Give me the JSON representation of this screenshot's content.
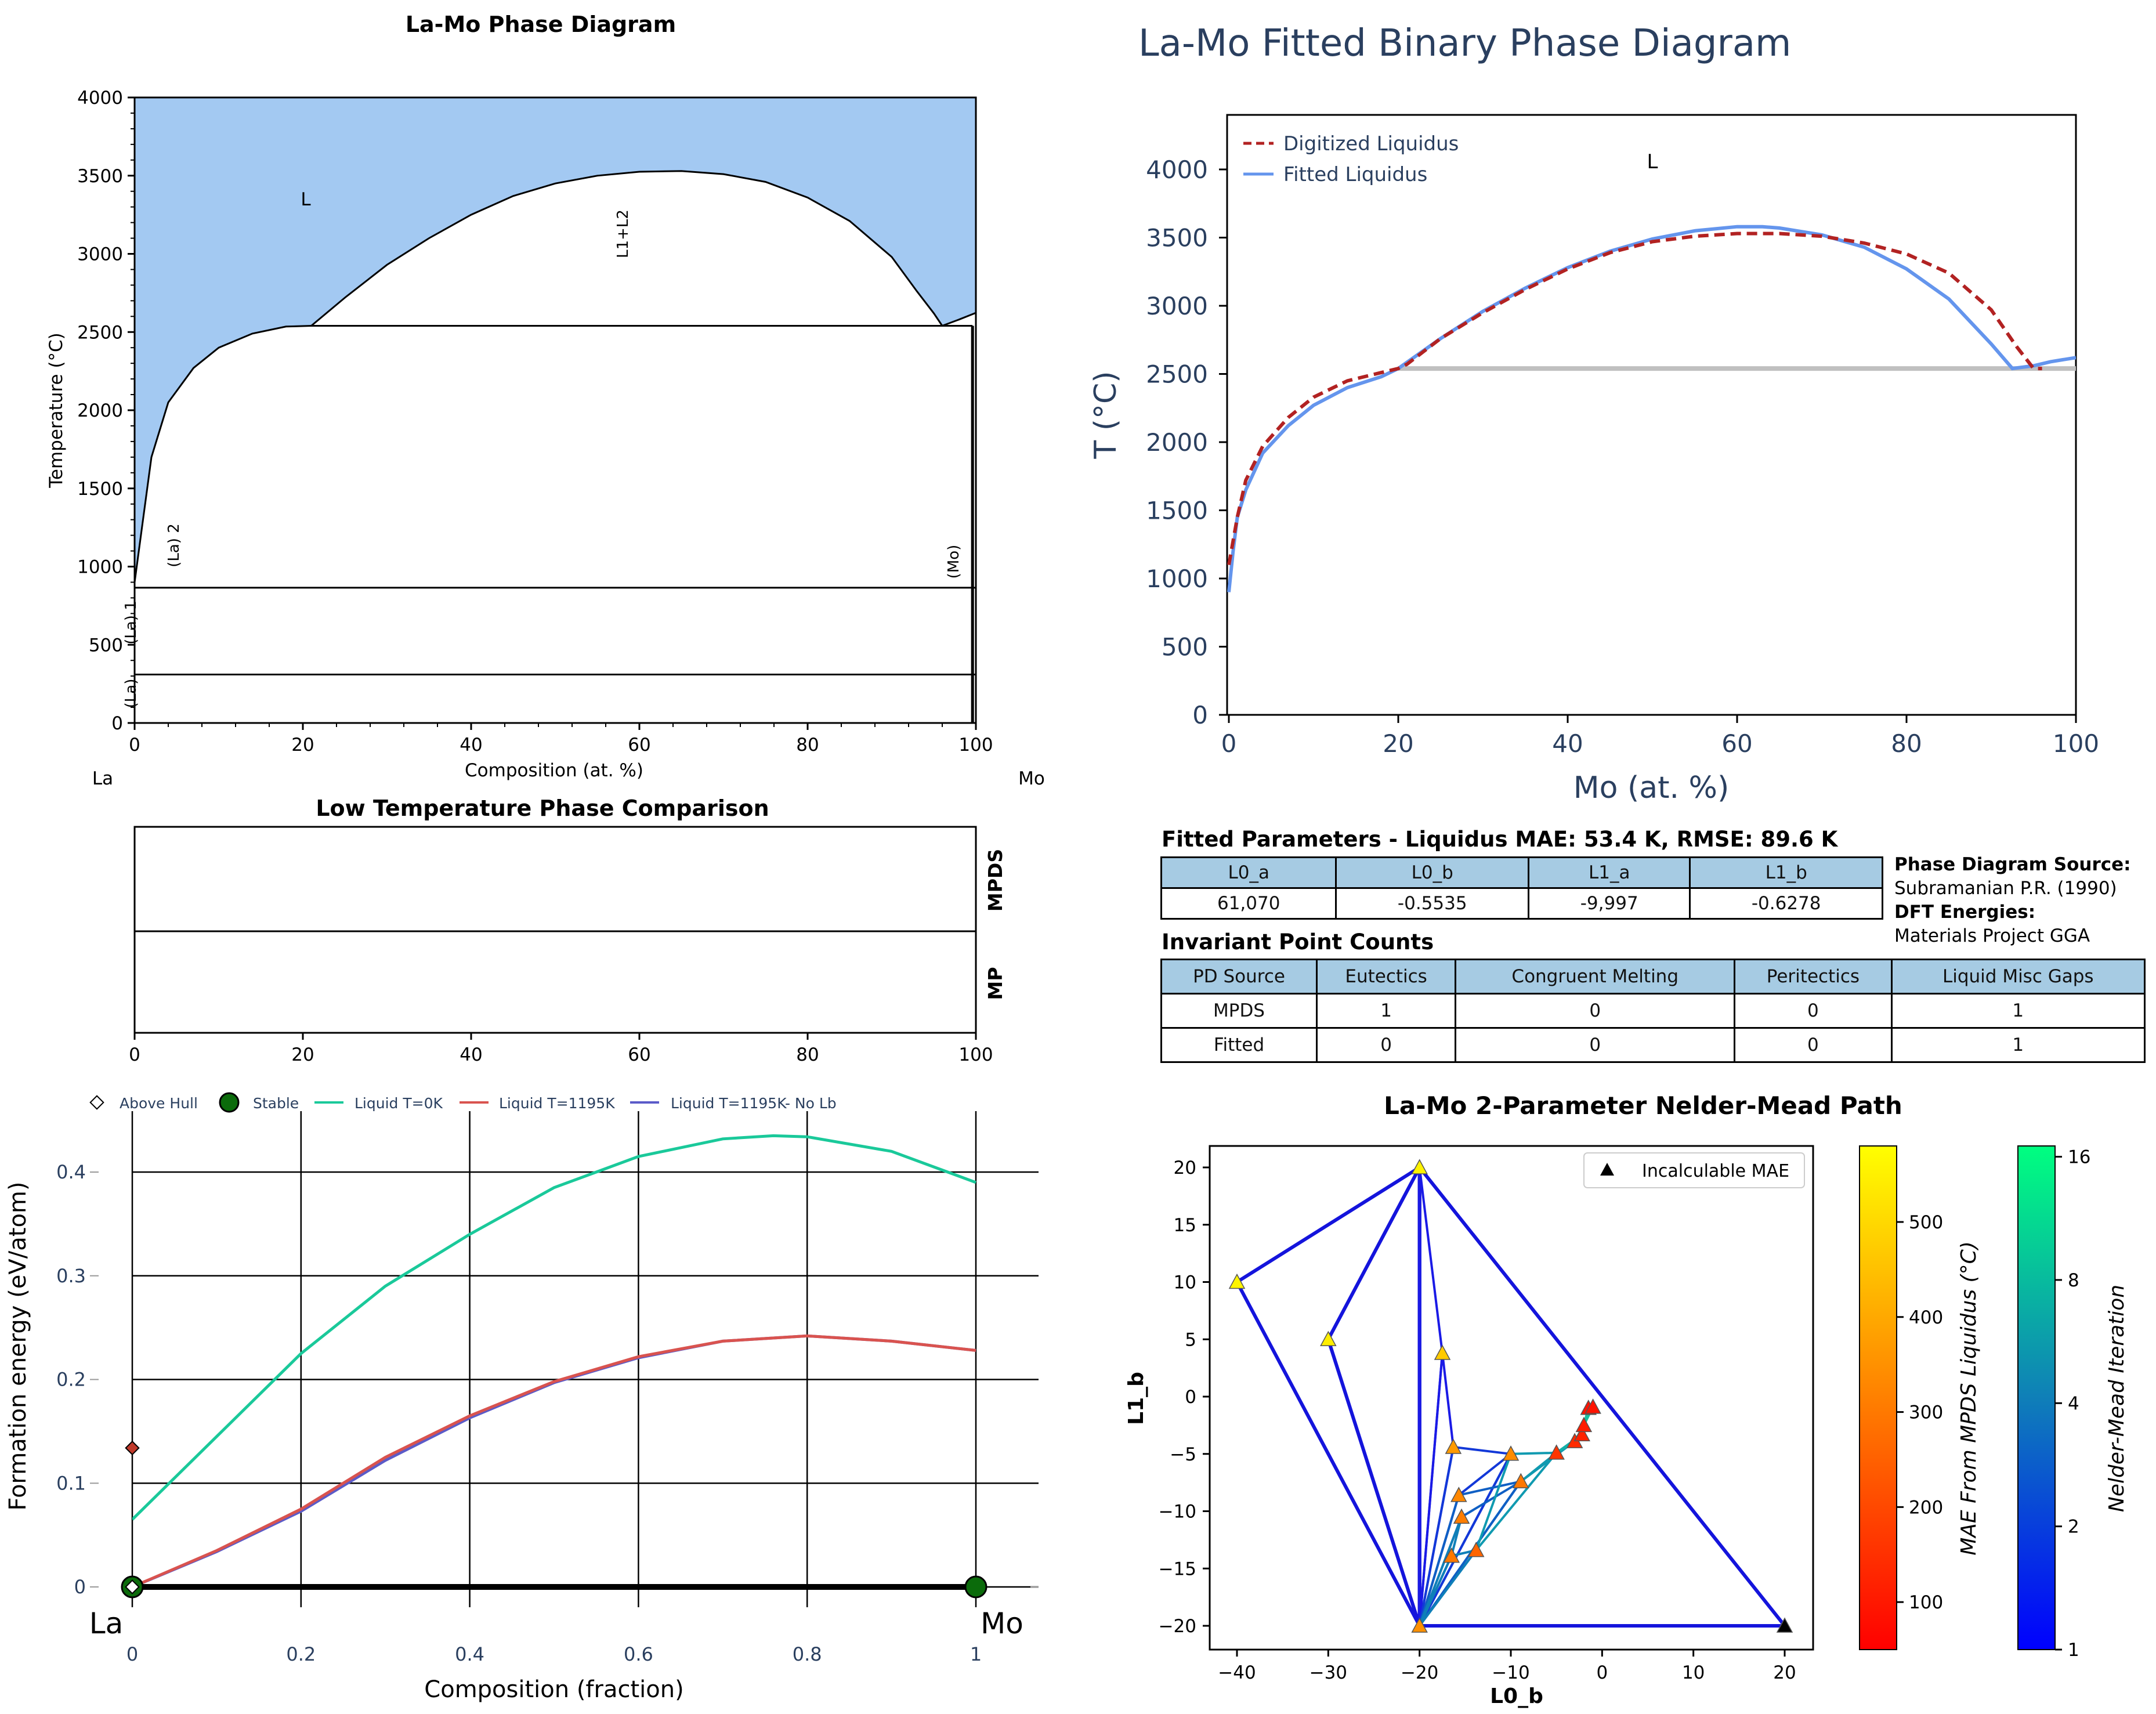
{
  "colors": {
    "liquid_fill": "#a3c9f2",
    "digitized": "#b22222",
    "fitted": "#6495ed",
    "navy": "#2a3f5f",
    "teal": "#1ac99a",
    "red": "#d9534f",
    "purple": "#5b5bc8",
    "stable": "#0b6b0b"
  },
  "chart_data": [
    {
      "id": "la_mo_phase_diagram",
      "type": "line",
      "title": "La-Mo Phase Diagram",
      "xlabel": "Composition (at. %)",
      "ylabel": "Temperature (°C)",
      "xlim": [
        0,
        100
      ],
      "ylim": [
        0,
        4000
      ],
      "xticks": [
        0,
        20,
        40,
        60,
        80,
        100
      ],
      "yticks": [
        0,
        500,
        1000,
        1500,
        2000,
        2500,
        3000,
        3500,
        4000
      ],
      "endpoints": {
        "left": "La",
        "right": "Mo"
      },
      "region_labels": [
        "L",
        "L1+L2",
        "(La) 2",
        "(Mo)",
        "(La) 1",
        "(La)"
      ],
      "liquidus_left": {
        "x": [
          0,
          1,
          2,
          4,
          7,
          10,
          14,
          18,
          21
        ],
        "y": [
          900,
          1300,
          1700,
          2050,
          2270,
          2400,
          2490,
          2535,
          2540
        ]
      },
      "miscibility_gap": {
        "x": [
          21,
          25,
          30,
          35,
          40,
          45,
          50,
          55,
          60,
          65,
          70,
          75,
          80,
          85,
          90,
          93,
          95,
          96
        ],
        "y": [
          2540,
          2720,
          2930,
          3100,
          3250,
          3370,
          3450,
          3500,
          3525,
          3530,
          3510,
          3460,
          3360,
          3210,
          2980,
          2760,
          2620,
          2540
        ]
      },
      "liquidus_right": {
        "x": [
          96,
          98,
          100
        ],
        "y": [
          2540,
          2580,
          2623
        ]
      },
      "monotectic_T": 2540,
      "isotherms": [
        {
          "T": 865
        },
        {
          "T": 310
        }
      ]
    },
    {
      "id": "fitted_binary",
      "type": "line",
      "title": "La-Mo Fitted Binary Phase Diagram",
      "xlabel": "Mo (at. %)",
      "ylabel": "T (°C)",
      "xlim": [
        0,
        100
      ],
      "ylim": [
        0,
        4400
      ],
      "xticks": [
        0,
        20,
        40,
        60,
        80,
        100
      ],
      "yticks": [
        0,
        500,
        1000,
        1500,
        2000,
        2500,
        3000,
        3500,
        4000
      ],
      "region_label": "L",
      "series": [
        {
          "name": "Digitized Liquidus",
          "x": [
            0,
            1,
            2,
            4,
            7,
            10,
            14,
            18,
            20,
            21,
            25,
            30,
            35,
            40,
            45,
            50,
            55,
            60,
            65,
            70,
            75,
            80,
            85,
            90,
            93,
            95,
            96
          ],
          "y": [
            1100,
            1450,
            1720,
            1970,
            2180,
            2330,
            2450,
            2510,
            2540,
            2570,
            2760,
            2950,
            3120,
            3270,
            3390,
            3470,
            3510,
            3530,
            3530,
            3510,
            3460,
            3380,
            3240,
            2970,
            2700,
            2540,
            2540
          ]
        },
        {
          "name": "Fitted Liquidus",
          "x": [
            0,
            0.5,
            1,
            2,
            4,
            7,
            10,
            14,
            18,
            20,
            25,
            30,
            35,
            40,
            45,
            50,
            55,
            60,
            63,
            65,
            70,
            75,
            80,
            85,
            90,
            92.5,
            95,
            97,
            100
          ],
          "y": [
            900,
            1200,
            1450,
            1650,
            1920,
            2120,
            2270,
            2400,
            2480,
            2540,
            2760,
            2960,
            3130,
            3280,
            3400,
            3490,
            3550,
            3580,
            3580,
            3570,
            3520,
            3430,
            3270,
            3050,
            2720,
            2540,
            2560,
            2590,
            2620
          ]
        },
        {
          "name": "",
          "x": [
            20,
            100
          ],
          "y": [
            2540,
            2540
          ]
        }
      ]
    },
    {
      "id": "low_temp_comparison",
      "type": "bar",
      "title": "Low Temperature Phase Comparison",
      "xlim": [
        0,
        100
      ],
      "xticks": [
        0,
        20,
        40,
        60,
        80,
        100
      ],
      "categories": [
        "MPDS",
        "MP"
      ]
    },
    {
      "id": "formation_energy",
      "type": "scatter",
      "xlabel": "Composition (fraction)",
      "ylabel": "Formation energy (eV/atom)",
      "xlim": [
        0,
        1
      ],
      "ylim": [
        -0.02,
        0.45
      ],
      "xticks": [
        "0",
        "0.2",
        "0.4",
        "0.6",
        "0.8",
        "1"
      ],
      "yticks": [
        "0",
        "0.1",
        "0.2",
        "0.3",
        "0.4"
      ],
      "endpoints": {
        "left": "La",
        "right": "Mo"
      },
      "series": [
        {
          "name": "Above Hull",
          "x": [
            0
          ],
          "y": [
            0.134
          ]
        },
        {
          "name": "Stable",
          "x": [
            0,
            1
          ],
          "y": [
            0,
            0
          ]
        },
        {
          "name": "Liquid T=0K",
          "x": [
            0,
            0.1,
            0.2,
            0.3,
            0.4,
            0.5,
            0.6,
            0.7,
            0.76,
            0.8,
            0.9,
            1
          ],
          "y": [
            0.065,
            0.145,
            0.225,
            0.29,
            0.34,
            0.385,
            0.415,
            0.432,
            0.435,
            0.434,
            0.42,
            0.39
          ]
        },
        {
          "name": "Liquid T=1195K",
          "x": [
            0,
            0.1,
            0.2,
            0.3,
            0.4,
            0.5,
            0.6,
            0.7,
            0.8,
            0.9,
            1
          ],
          "y": [
            0,
            0.035,
            0.075,
            0.125,
            0.165,
            0.198,
            0.222,
            0.237,
            0.242,
            0.237,
            0.228
          ]
        },
        {
          "name": "Liquid T=1195K- No Lb",
          "x": [
            0,
            0.1,
            0.2,
            0.3,
            0.4,
            0.5,
            0.6,
            0.7,
            0.8,
            0.9,
            1
          ],
          "y": [
            0,
            0.034,
            0.073,
            0.122,
            0.163,
            0.197,
            0.221,
            0.237,
            0.242,
            0.237,
            0.228
          ]
        }
      ]
    },
    {
      "id": "nelder_mead",
      "type": "scatter",
      "title": "La-Mo 2-Parameter Nelder-Mead Path",
      "xlabel": "L0_b",
      "ylabel": "L1_b",
      "xlim": [
        -44,
        24
      ],
      "ylim": [
        -22,
        22
      ],
      "xticks": [
        -40,
        -30,
        -20,
        -10,
        0,
        10,
        20
      ],
      "yticks": [
        -20,
        -15,
        -10,
        -5,
        0,
        5,
        10,
        15,
        20
      ],
      "legend": "Incalculable MAE",
      "points": [
        {
          "x": -40,
          "y": 10,
          "mae": 560
        },
        {
          "x": -20,
          "y": 20,
          "mae": 555
        },
        {
          "x": -20,
          "y": -20,
          "mae": 350
        },
        {
          "x": 20,
          "y": -20,
          "mae": null
        },
        {
          "x": -30,
          "y": 5,
          "mae": 545
        },
        {
          "x": -17.5,
          "y": 3.8,
          "mae": 470
        },
        {
          "x": -16.3,
          "y": -4.4,
          "mae": 370
        },
        {
          "x": -10,
          "y": -5,
          "mae": 340
        },
        {
          "x": -15.7,
          "y": -8.6,
          "mae": 330
        },
        {
          "x": -8.9,
          "y": -7.4,
          "mae": 300
        },
        {
          "x": -15.4,
          "y": -10.5,
          "mae": 310
        },
        {
          "x": -16.5,
          "y": -13.9,
          "mae": 300
        },
        {
          "x": -13.8,
          "y": -13.4,
          "mae": 260
        },
        {
          "x": -5,
          "y": -4.9,
          "mae": 160
        },
        {
          "x": -3,
          "y": -3.9,
          "mae": 140
        },
        {
          "x": -2.2,
          "y": -3.3,
          "mae": 120
        },
        {
          "x": -2,
          "y": -2.5,
          "mae": 110
        },
        {
          "x": -1.5,
          "y": -1,
          "mae": 90
        },
        {
          "x": -1,
          "y": -0.9,
          "mae": 90
        }
      ],
      "colorbar_mae": {
        "label": "MAE From MPDS Liquidus (°C)",
        "ticks": [
          100,
          200,
          300,
          400,
          500
        ]
      },
      "colorbar_iter": {
        "label": "Nelder-Mead Iteration",
        "ticks": [
          "1",
          "2",
          "4",
          "8",
          "16"
        ]
      }
    }
  ],
  "fitted_params": {
    "title": "Fitted Parameters - Liquidus MAE: 53.4 K, RMSE: 89.6 K",
    "headers": [
      "L0_a",
      "L0_b",
      "L1_a",
      "L1_b"
    ],
    "values": [
      "61,070",
      "-0.5535",
      "-9,997",
      "-0.6278"
    ]
  },
  "invariants": {
    "title": "Invariant Point Counts",
    "headers": [
      "PD Source",
      "Eutectics",
      "Congruent Melting",
      "Peritectics",
      "Liquid Misc Gaps"
    ],
    "rows": [
      [
        "MPDS",
        "1",
        "0",
        "0",
        "1"
      ],
      [
        "Fitted",
        "0",
        "0",
        "0",
        "1"
      ]
    ]
  },
  "source": {
    "pd_label": "Phase Diagram Source:",
    "pd_value": "Subramanian P.R. (1990)",
    "dft_label": "DFT Energies:",
    "dft_value": "Materials Project GGA"
  }
}
